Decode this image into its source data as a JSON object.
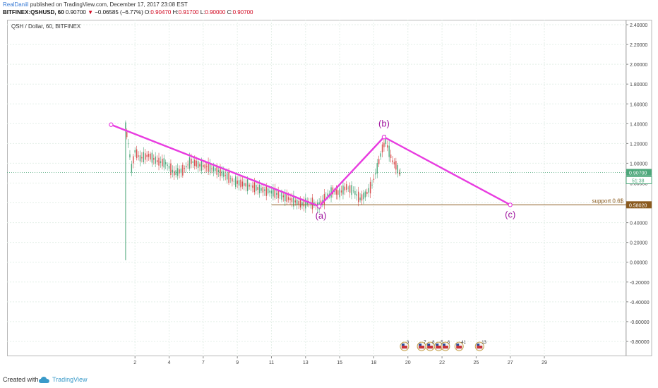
{
  "header": {
    "author": "RealDaniil",
    "published": " published on TradingView.com, December 17, 2017 23:08 EST",
    "symbol": "BITFINEX:QSHUSD, 60",
    "last": "0.90700",
    "change": "−0.06585 (−6.77%)",
    "o_label": "O:",
    "o": "0.90470",
    "h_label": "H:",
    "h": "0.91700",
    "l_label": "L:",
    "l": "0.90000",
    "c_label": "C:",
    "c": "0.90700"
  },
  "footer": {
    "created": "Created with",
    "brand": "TradingView"
  },
  "colors": {
    "wave": "#e83ce0",
    "wave_label": "#a0159f",
    "support": "#8a5a1e",
    "up": "#4ca77a",
    "down": "#d64a4a",
    "price_line": "#4ca77a",
    "grid": "#e4efe8"
  },
  "chart_data": {
    "type": "candlestick",
    "title": "QSH / Dollar, 60, BITFINEX",
    "x_ticks": [
      "2",
      "4",
      "7",
      "9",
      "11",
      "13",
      "15",
      "18",
      "20",
      "22",
      "25",
      "27",
      "29"
    ],
    "x_tick_days": [
      2,
      4,
      6,
      8,
      10,
      12,
      14,
      16,
      18,
      20,
      22,
      24,
      26
    ],
    "x_range_days": [
      -5.5,
      30.8
    ],
    "y_ticks": [
      "2.40000",
      "2.20000",
      "2.00000",
      "1.80000",
      "1.60000",
      "1.40000",
      "1.20000",
      "1.00000",
      "0.80000",
      "0.60000",
      "0.40000",
      "0.20000",
      "0.00000",
      "-0.20000",
      "-0.40000",
      "-0.60000",
      "-0.80000"
    ],
    "y_tick_values": [
      2.4,
      2.2,
      2.0,
      1.8,
      1.6,
      1.4,
      1.2,
      1.0,
      0.8,
      0.6,
      0.4,
      0.2,
      0.0,
      -0.2,
      -0.4,
      -0.6,
      -0.8
    ],
    "ylim": [
      -0.95,
      2.45
    ],
    "grid": true,
    "last_price": 0.907,
    "last_price_label": "0.90700",
    "countdown_label": "51:38",
    "support": {
      "value": 0.5802,
      "label": "support 0.6$",
      "price_label": "0.58020"
    },
    "wave_lines": [
      {
        "from": {
          "day": 0.6,
          "price": 1.39
        },
        "to": {
          "day": 12.8,
          "price": 0.565
        }
      },
      {
        "from": {
          "day": 12.8,
          "price": 0.565
        },
        "to": {
          "day": 16.6,
          "price": 1.265
        }
      },
      {
        "from": {
          "day": 16.6,
          "price": 1.265
        },
        "to": {
          "day": 24.0,
          "price": 0.58
        }
      }
    ],
    "wave_labels": [
      {
        "text": "(a)",
        "day": 12.9,
        "price": 0.44
      },
      {
        "text": "(b)",
        "day": 16.6,
        "price": 1.37
      },
      {
        "text": "(c)",
        "day": 24.0,
        "price": 0.45
      }
    ],
    "price_path": [
      [
        1.45,
        0.02
      ],
      [
        1.45,
        1.38
      ],
      [
        1.6,
        1.2
      ],
      [
        1.8,
        0.95
      ],
      [
        2.0,
        1.12
      ],
      [
        2.3,
        1.05
      ],
      [
        2.8,
        1.08
      ],
      [
        3.3,
        1.02
      ],
      [
        3.8,
        1.0
      ],
      [
        4.3,
        0.9
      ],
      [
        4.8,
        0.93
      ],
      [
        5.3,
        1.02
      ],
      [
        5.8,
        0.98
      ],
      [
        6.3,
        0.96
      ],
      [
        6.8,
        0.93
      ],
      [
        7.3,
        0.88
      ],
      [
        7.8,
        0.82
      ],
      [
        8.3,
        0.79
      ],
      [
        8.8,
        0.77
      ],
      [
        9.3,
        0.74
      ],
      [
        9.8,
        0.72
      ],
      [
        10.3,
        0.69
      ],
      [
        10.8,
        0.66
      ],
      [
        11.3,
        0.62
      ],
      [
        11.8,
        0.59
      ],
      [
        12.3,
        0.6
      ],
      [
        12.8,
        0.57
      ],
      [
        13.2,
        0.66
      ],
      [
        13.6,
        0.72
      ],
      [
        14.0,
        0.7
      ],
      [
        14.4,
        0.76
      ],
      [
        14.8,
        0.72
      ],
      [
        15.2,
        0.64
      ],
      [
        15.6,
        0.7
      ],
      [
        15.9,
        0.78
      ],
      [
        16.2,
        0.95
      ],
      [
        16.5,
        1.15
      ],
      [
        16.7,
        1.22
      ],
      [
        16.9,
        1.12
      ],
      [
        17.1,
        1.02
      ],
      [
        17.3,
        0.98
      ],
      [
        17.5,
        0.9
      ],
      [
        17.6,
        0.907
      ]
    ],
    "event_badges": [
      {
        "day": 17.8,
        "count": "3"
      },
      {
        "day": 18.8,
        "count": "7"
      },
      {
        "day": 19.3,
        "count": "8"
      },
      {
        "day": 19.8,
        "count": "5"
      },
      {
        "day": 20.2,
        "count": "6"
      },
      {
        "day": 21.0,
        "count": "41"
      },
      {
        "day": 22.2,
        "count": "13"
      }
    ]
  }
}
